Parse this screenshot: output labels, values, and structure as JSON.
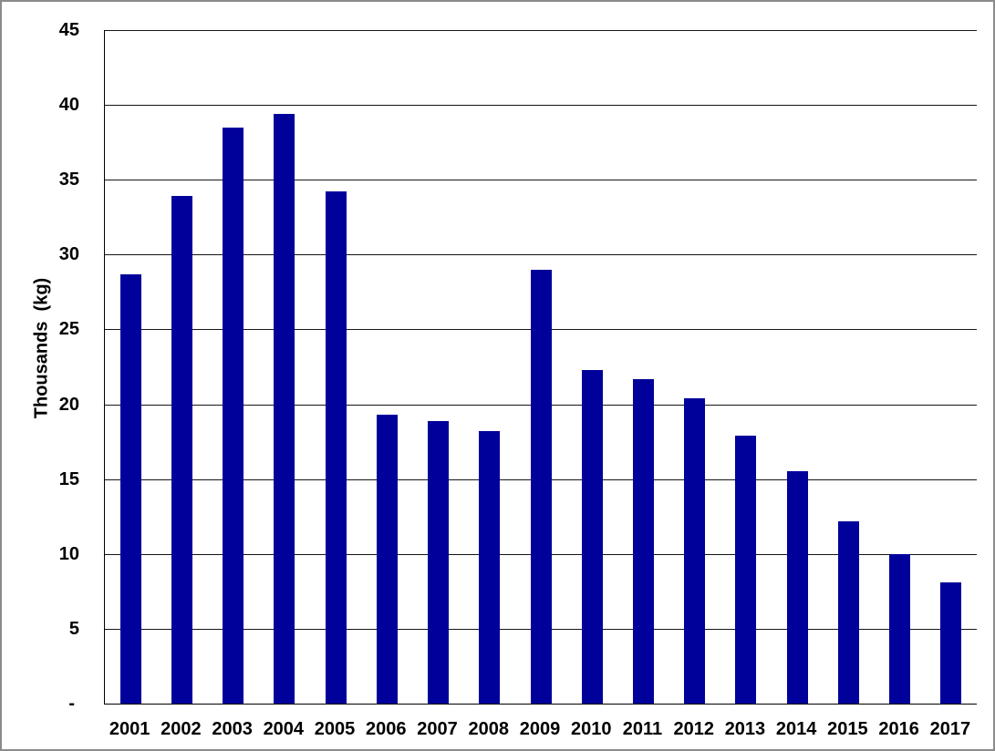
{
  "chart_data": {
    "type": "bar",
    "title": "",
    "xlabel": "",
    "ylabel": "Thousands  (kg)",
    "categories": [
      "2001",
      "2002",
      "2003",
      "2004",
      "2005",
      "2006",
      "2007",
      "2008",
      "2009",
      "2010",
      "2011",
      "2012",
      "2013",
      "2014",
      "2015",
      "2016",
      "2017"
    ],
    "values": [
      28.7,
      33.9,
      38.5,
      39.4,
      34.2,
      19.3,
      18.9,
      18.2,
      29.0,
      22.3,
      21.7,
      20.4,
      17.9,
      15.5,
      12.2,
      10.0,
      8.1
    ],
    "ylim": [
      0,
      45
    ],
    "yticks": [
      0,
      5,
      10,
      15,
      20,
      25,
      30,
      35,
      40,
      45
    ],
    "ytick_labels": [
      "-",
      "5",
      "10",
      "15",
      "20",
      "25",
      "30",
      "35",
      "40",
      "45"
    ],
    "grid": true,
    "legend_position": "none",
    "colors": {
      "bar_fill": "#00009B",
      "gridline": "#161616",
      "axis_line": "#000000",
      "text": "#000000",
      "frame_border": "#8B8B8B",
      "background": "#FFFFFF"
    }
  }
}
